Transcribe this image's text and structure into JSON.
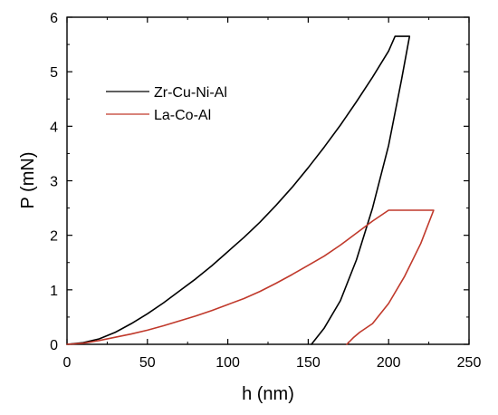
{
  "chart_data": {
    "type": "line",
    "title": "",
    "xlabel": "h (nm)",
    "ylabel": "P (mN)",
    "xlim": [
      0,
      250
    ],
    "ylim": [
      0,
      6
    ],
    "xticks": [
      0,
      50,
      100,
      150,
      200,
      250
    ],
    "yticks": [
      0,
      1,
      2,
      3,
      4,
      5,
      6
    ],
    "grid": false,
    "legend_position": "upper-left",
    "series": [
      {
        "name": "Zr-Cu-Ni-Al",
        "color": "#000000",
        "points": [
          [
            0,
            0
          ],
          [
            10,
            0.03
          ],
          [
            20,
            0.1
          ],
          [
            30,
            0.22
          ],
          [
            40,
            0.38
          ],
          [
            50,
            0.56
          ],
          [
            60,
            0.76
          ],
          [
            70,
            0.98
          ],
          [
            80,
            1.2
          ],
          [
            90,
            1.44
          ],
          [
            100,
            1.7
          ],
          [
            110,
            1.96
          ],
          [
            120,
            2.24
          ],
          [
            130,
            2.55
          ],
          [
            140,
            2.88
          ],
          [
            150,
            3.24
          ],
          [
            160,
            3.62
          ],
          [
            170,
            4.02
          ],
          [
            180,
            4.45
          ],
          [
            190,
            4.9
          ],
          [
            200,
            5.38
          ],
          [
            204,
            5.65
          ],
          [
            213,
            5.65
          ],
          [
            208,
            4.85
          ],
          [
            200,
            3.65
          ],
          [
            190,
            2.5
          ],
          [
            180,
            1.55
          ],
          [
            170,
            0.8
          ],
          [
            160,
            0.3
          ],
          [
            152,
            0
          ]
        ]
      },
      {
        "name": "La-Co-Al",
        "color": "#c0392b",
        "points": [
          [
            0,
            0
          ],
          [
            10,
            0.02
          ],
          [
            20,
            0.07
          ],
          [
            30,
            0.13
          ],
          [
            40,
            0.19
          ],
          [
            50,
            0.26
          ],
          [
            60,
            0.34
          ],
          [
            70,
            0.43
          ],
          [
            80,
            0.52
          ],
          [
            90,
            0.62
          ],
          [
            100,
            0.73
          ],
          [
            110,
            0.84
          ],
          [
            120,
            0.97
          ],
          [
            130,
            1.12
          ],
          [
            140,
            1.28
          ],
          [
            150,
            1.45
          ],
          [
            160,
            1.62
          ],
          [
            170,
            1.82
          ],
          [
            180,
            2.04
          ],
          [
            190,
            2.26
          ],
          [
            200,
            2.46
          ],
          [
            228,
            2.46
          ],
          [
            220,
            1.85
          ],
          [
            210,
            1.25
          ],
          [
            200,
            0.75
          ],
          [
            190,
            0.38
          ],
          [
            182,
            0.22
          ],
          [
            178,
            0.12
          ],
          [
            174,
            0
          ]
        ]
      }
    ]
  }
}
